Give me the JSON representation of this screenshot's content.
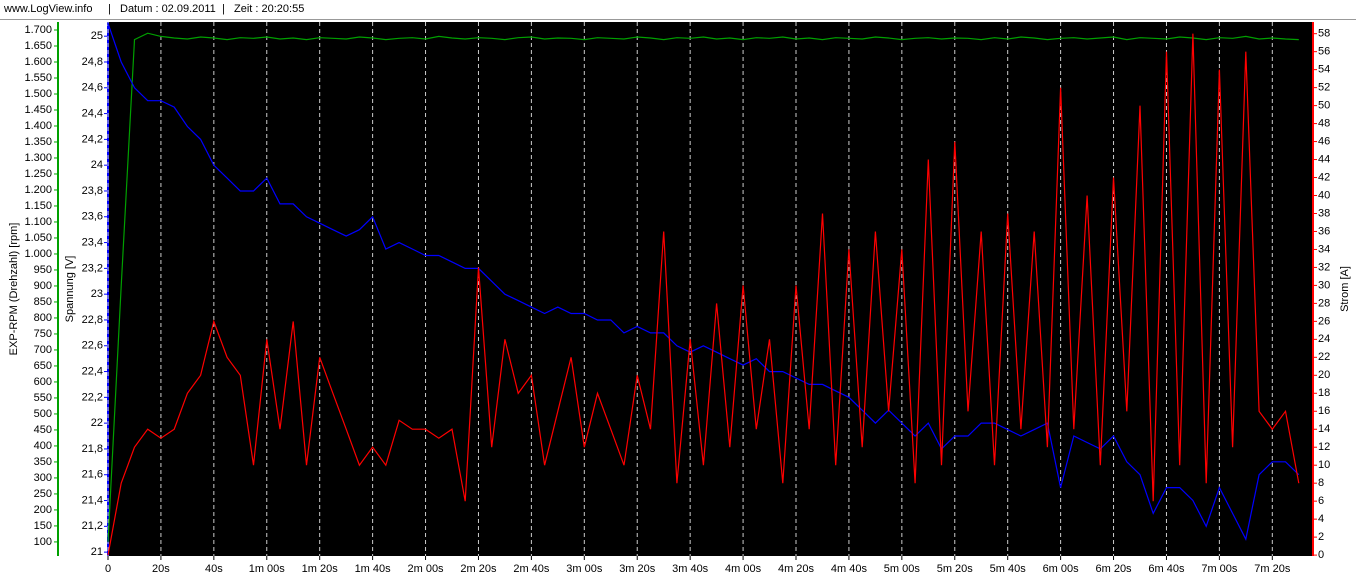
{
  "header": {
    "site": "www.LogView.info",
    "date": "Datum : 02.09.2011",
    "time": "Zeit : 20:20:55"
  },
  "chart_data": {
    "type": "line",
    "y_label": "EXP-RPM (Drehzahl) [rpm]",
    "y2_label": "Spannung [V]",
    "y3_label": "Strom [A]",
    "xlim": [
      0,
      455
    ],
    "xticks": [
      0,
      {
        "value": 20,
        "label": "20s"
      },
      {
        "value": 40,
        "label": "40s"
      },
      {
        "value": 60,
        "label": "1m 00s"
      },
      {
        "value": 80,
        "label": "1m 20s"
      },
      {
        "value": 100,
        "label": "1m 40s"
      },
      {
        "value": 120,
        "label": "2m 00s"
      },
      {
        "value": 140,
        "label": "2m 20s"
      },
      {
        "value": 160,
        "label": "2m 40s"
      },
      {
        "value": 180,
        "label": "3m 00s"
      },
      {
        "value": 200,
        "label": "3m 20s"
      },
      {
        "value": 220,
        "label": "3m 40s"
      },
      {
        "value": 240,
        "label": "4m 00s"
      },
      {
        "value": 260,
        "label": "4m 20s"
      },
      {
        "value": 280,
        "label": "4m 40s"
      },
      {
        "value": 300,
        "label": "5m 00s"
      },
      {
        "value": 320,
        "label": "5m 20s"
      },
      {
        "value": 340,
        "label": "5m 40s"
      },
      {
        "value": 360,
        "label": "6m 00s"
      },
      {
        "value": 380,
        "label": "6m 20s"
      },
      {
        "value": 400,
        "label": "6m 40s"
      },
      {
        "value": 420,
        "label": "7m 00s"
      },
      {
        "value": 440,
        "label": "7m 20s"
      }
    ],
    "ylim": [
      56,
      1725
    ],
    "yticks": [
      100,
      150,
      200,
      250,
      300,
      350,
      400,
      450,
      500,
      550,
      600,
      650,
      700,
      750,
      800,
      850,
      900,
      950,
      {
        "value": 1000,
        "label": "1.000"
      },
      {
        "value": 1050,
        "label": "1.050"
      },
      {
        "value": 1100,
        "label": "1.100"
      },
      {
        "value": 1150,
        "label": "1.150"
      },
      {
        "value": 1200,
        "label": "1.200"
      },
      {
        "value": 1250,
        "label": "1.250"
      },
      {
        "value": 1300,
        "label": "1.300"
      },
      {
        "value": 1350,
        "label": "1.350"
      },
      {
        "value": 1400,
        "label": "1.400"
      },
      {
        "value": 1450,
        "label": "1.450"
      },
      {
        "value": 1500,
        "label": "1.500"
      },
      {
        "value": 1550,
        "label": "1.550"
      },
      {
        "value": 1600,
        "label": "1.600"
      },
      {
        "value": 1650,
        "label": "1.650"
      },
      {
        "value": 1700,
        "label": "1.700"
      }
    ],
    "y2lim": [
      20.97,
      25.11
    ],
    "y2ticks": [
      21,
      {
        "value": 21.2,
        "label": "21,2"
      },
      {
        "value": 21.4,
        "label": "21,4"
      },
      {
        "value": 21.6,
        "label": "21,6"
      },
      {
        "value": 21.8,
        "label": "21,8"
      },
      22,
      {
        "value": 22.2,
        "label": "22,2"
      },
      {
        "value": 22.4,
        "label": "22,4"
      },
      {
        "value": 22.6,
        "label": "22,6"
      },
      {
        "value": 22.8,
        "label": "22,8"
      },
      23,
      {
        "value": 23.2,
        "label": "23,2"
      },
      {
        "value": 23.4,
        "label": "23,4"
      },
      {
        "value": 23.6,
        "label": "23,6"
      },
      {
        "value": 23.8,
        "label": "23,8"
      },
      24,
      {
        "value": 24.2,
        "label": "24,2"
      },
      {
        "value": 24.4,
        "label": "24,4"
      },
      {
        "value": 24.6,
        "label": "24,6"
      },
      {
        "value": 24.8,
        "label": "24,8"
      },
      25
    ],
    "y3lim": [
      -0.1,
      59.3
    ],
    "y3ticks": [
      0,
      2,
      4,
      6,
      8,
      10,
      12,
      14,
      16,
      18,
      20,
      22,
      24,
      26,
      28,
      30,
      32,
      34,
      36,
      38,
      40,
      42,
      44,
      46,
      48,
      50,
      52,
      54,
      56,
      58
    ],
    "grid": true,
    "x": [
      0,
      5,
      10,
      15,
      20,
      25,
      30,
      35,
      40,
      45,
      50,
      55,
      60,
      65,
      70,
      75,
      80,
      85,
      90,
      95,
      100,
      105,
      110,
      115,
      120,
      125,
      130,
      135,
      140,
      145,
      150,
      155,
      160,
      165,
      170,
      175,
      180,
      185,
      190,
      195,
      200,
      205,
      210,
      215,
      220,
      225,
      230,
      235,
      240,
      245,
      250,
      255,
      260,
      265,
      270,
      275,
      280,
      285,
      290,
      295,
      300,
      305,
      310,
      315,
      320,
      325,
      330,
      335,
      340,
      345,
      350,
      355,
      360,
      365,
      370,
      375,
      380,
      385,
      390,
      395,
      400,
      405,
      410,
      415,
      420,
      425,
      430,
      435,
      440,
      445,
      450
    ],
    "series": [
      {
        "axis": "y",
        "color": "#00a000",
        "values": [
          100,
          900,
          1670,
          1690,
          1680,
          1675,
          1672,
          1678,
          1675,
          1670,
          1676,
          1674,
          1678,
          1672,
          1675,
          1670,
          1676,
          1674,
          1672,
          1678,
          1675,
          1670,
          1674,
          1676,
          1672,
          1680,
          1675,
          1672,
          1676,
          1674,
          1670,
          1676,
          1678,
          1672,
          1675,
          1674,
          1670,
          1676,
          1674,
          1672,
          1678,
          1675,
          1670,
          1676,
          1674,
          1678,
          1672,
          1675,
          1670,
          1676,
          1674,
          1678,
          1672,
          1675,
          1670,
          1676,
          1674,
          1672,
          1678,
          1675,
          1670,
          1674,
          1676,
          1672,
          1675,
          1674,
          1670,
          1676,
          1672,
          1678,
          1675,
          1670,
          1674,
          1676,
          1672,
          1675,
          1678,
          1670,
          1676,
          1674,
          1672,
          1678,
          1675,
          1670,
          1676,
          1674,
          1680,
          1672,
          1675,
          1672,
          1670
        ]
      },
      {
        "axis": "y2",
        "color": "#0000ff",
        "values": [
          25.1,
          24.8,
          24.6,
          24.5,
          24.5,
          24.45,
          24.3,
          24.2,
          24.0,
          23.9,
          23.8,
          23.8,
          23.9,
          23.7,
          23.7,
          23.6,
          23.55,
          23.5,
          23.45,
          23.5,
          23.6,
          23.35,
          23.4,
          23.35,
          23.3,
          23.3,
          23.25,
          23.2,
          23.2,
          23.1,
          23.0,
          22.95,
          22.9,
          22.85,
          22.9,
          22.85,
          22.85,
          22.8,
          22.8,
          22.7,
          22.75,
          22.7,
          22.7,
          22.6,
          22.55,
          22.6,
          22.55,
          22.5,
          22.45,
          22.5,
          22.4,
          22.4,
          22.35,
          22.3,
          22.3,
          22.25,
          22.2,
          22.1,
          22.0,
          22.1,
          22.0,
          21.9,
          22.0,
          21.8,
          21.9,
          21.9,
          22.0,
          22.0,
          21.95,
          21.9,
          21.95,
          22.0,
          21.5,
          21.9,
          21.85,
          21.8,
          21.9,
          21.7,
          21.6,
          21.3,
          21.5,
          21.5,
          21.4,
          21.2,
          21.5,
          21.3,
          21.1,
          21.6,
          21.7,
          21.7,
          21.6
        ]
      },
      {
        "axis": "y3",
        "color": "#ff0000",
        "values": [
          0,
          8,
          12,
          14,
          13,
          14,
          18,
          20,
          26,
          22,
          20,
          10,
          24,
          14,
          26,
          10,
          22,
          18,
          14,
          10,
          12,
          10,
          15,
          14,
          14,
          13,
          14,
          6,
          32,
          12,
          24,
          18,
          20,
          10,
          16,
          22,
          12,
          18,
          14,
          10,
          20,
          14,
          36,
          8,
          24,
          10,
          28,
          12,
          30,
          14,
          24,
          8,
          30,
          14,
          38,
          10,
          34,
          12,
          36,
          16,
          34,
          8,
          44,
          10,
          46,
          16,
          36,
          10,
          38,
          14,
          36,
          12,
          52,
          14,
          40,
          10,
          42,
          16,
          50,
          6,
          56,
          10,
          58,
          8,
          54,
          12,
          56,
          16,
          14,
          16,
          8
        ]
      }
    ]
  }
}
